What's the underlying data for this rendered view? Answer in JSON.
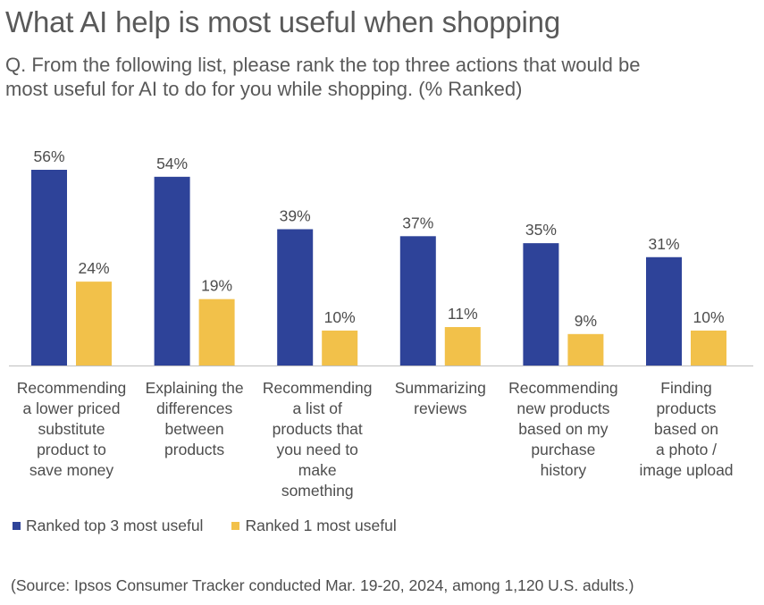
{
  "title": "What AI help is most useful when shopping",
  "subtitle": "Q. From the following list, please rank the top three actions that would be most useful for AI to do for you while shopping. (% Ranked)",
  "source": "(Source: Ipsos Consumer Tracker conducted Mar. 19-20, 2024, among 1,120 U.S. adults.)",
  "colors": {
    "series_1": "#2e4399",
    "series_2": "#f2c14a",
    "axis": "#bfbfbf"
  },
  "chart_data": {
    "type": "bar",
    "categories": [
      "Recommending a lower priced substitute product to save money",
      "Explaining the differences between products",
      "Recommending a list of products that you need to make something",
      "Summarizing reviews",
      "Recommending new products based on my purchase history",
      "Finding products based on a photo / image upload"
    ],
    "category_lines": [
      [
        "Recommending",
        "a lower priced",
        "substitute",
        "product to",
        "save money"
      ],
      [
        "Explaining the",
        "differences",
        "between",
        "products"
      ],
      [
        "Recommending",
        "a list of",
        "products that",
        "you need to",
        "make",
        "something"
      ],
      [
        "Summarizing",
        "reviews"
      ],
      [
        "Recommending",
        "new products",
        "based on my",
        "purchase",
        "history"
      ],
      [
        "Finding",
        "products",
        "based on",
        "a photo /",
        "image upload"
      ]
    ],
    "series": [
      {
        "name": "Ranked top 3 most useful",
        "values": [
          56,
          54,
          39,
          37,
          35,
          31
        ],
        "labels": [
          "56%",
          "54%",
          "39%",
          "37%",
          "35%",
          "31%"
        ]
      },
      {
        "name": "Ranked 1 most useful",
        "values": [
          24,
          19,
          10,
          11,
          9,
          10
        ],
        "labels": [
          "24%",
          "19%",
          "10%",
          "11%",
          "9%",
          "10%"
        ]
      }
    ],
    "ylim": [
      0,
      60
    ],
    "grid": false,
    "legend_position": "bottom-left",
    "xlabel": "",
    "ylabel": ""
  }
}
